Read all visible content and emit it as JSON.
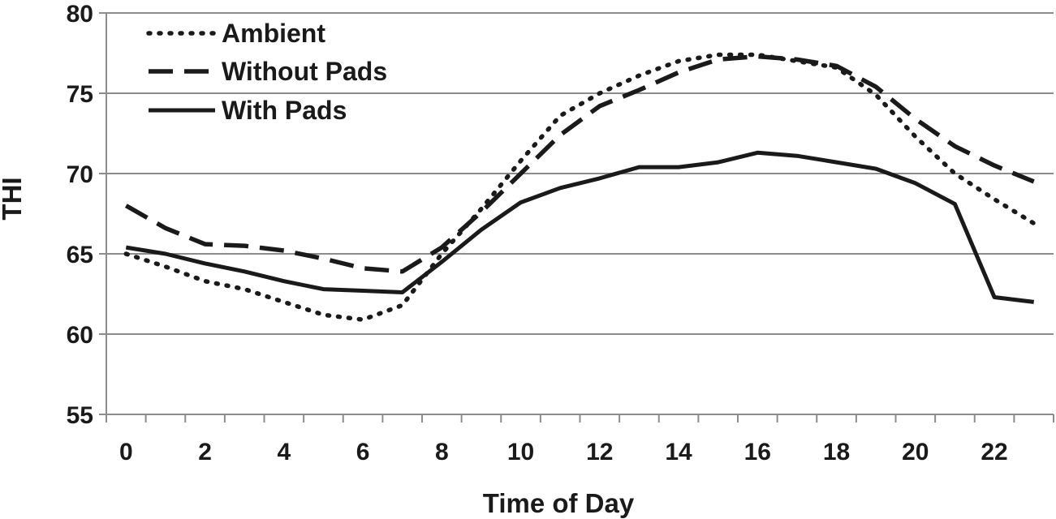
{
  "chart_data": {
    "type": "line",
    "title": "",
    "xlabel": "Time of Day",
    "ylabel": "THI",
    "x": [
      0,
      1,
      2,
      3,
      4,
      5,
      6,
      7,
      8,
      9,
      10,
      11,
      12,
      13,
      14,
      15,
      16,
      17,
      18,
      19,
      20,
      21,
      22,
      23
    ],
    "x_ticks": [
      0,
      2,
      4,
      6,
      8,
      10,
      12,
      14,
      16,
      18,
      20,
      22
    ],
    "x_tick_labels": [
      "0",
      "2",
      "4",
      "6",
      "8",
      "10",
      "12",
      "14",
      "16",
      "18",
      "20",
      "22"
    ],
    "xlim": [
      -0.5,
      23.5
    ],
    "ylim": [
      55,
      80
    ],
    "y_ticks": [
      55,
      60,
      65,
      70,
      75,
      80
    ],
    "y_tick_labels": [
      "55",
      "60",
      "65",
      "70",
      "75",
      "80"
    ],
    "grid": "horizontal",
    "legend_position": "top-left",
    "series": [
      {
        "name": "Ambient",
        "style": "dotted",
        "color": "#1a1a1a",
        "values": [
          65.0,
          64.2,
          63.3,
          62.8,
          62.0,
          61.2,
          60.9,
          61.8,
          65.0,
          67.8,
          70.8,
          73.6,
          75.0,
          76.1,
          77.0,
          77.4,
          77.4,
          77.0,
          76.6,
          74.9,
          72.3,
          70.0,
          68.4,
          66.9
        ]
      },
      {
        "name": "Without Pads",
        "style": "dashed",
        "color": "#1a1a1a",
        "values": [
          68.0,
          66.6,
          65.6,
          65.5,
          65.2,
          64.7,
          64.1,
          63.9,
          65.4,
          67.6,
          70.0,
          72.4,
          74.2,
          75.2,
          76.3,
          77.1,
          77.3,
          77.1,
          76.7,
          75.4,
          73.4,
          71.7,
          70.5,
          69.5
        ]
      },
      {
        "name": "With Pads",
        "style": "solid",
        "color": "#1a1a1a",
        "values": [
          65.4,
          65.0,
          64.4,
          63.9,
          63.3,
          62.8,
          62.7,
          62.6,
          64.5,
          66.5,
          68.2,
          69.1,
          69.7,
          70.4,
          70.4,
          70.7,
          71.3,
          71.1,
          70.7,
          70.3,
          69.4,
          68.1,
          62.3,
          62.0
        ]
      }
    ]
  }
}
